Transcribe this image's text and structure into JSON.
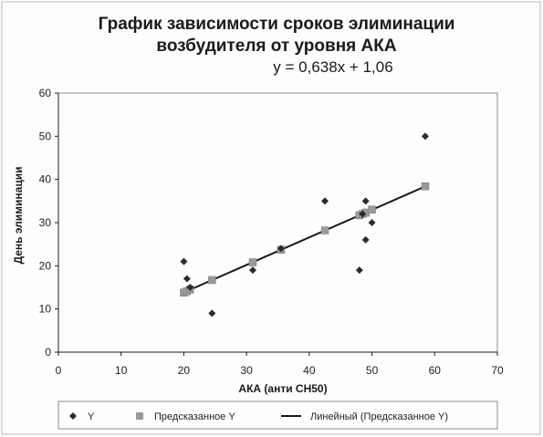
{
  "chart_data": {
    "type": "scatter",
    "title_lines": [
      "График зависимости сроков элиминации",
      "возбудителя от уровня АКА"
    ],
    "equation": "y = 0,638x + 1,06",
    "xlabel": "АКА (анти СН50)",
    "ylabel": "День элиминации",
    "xlim": [
      0,
      70
    ],
    "ylim": [
      0,
      60
    ],
    "x_ticks": [
      0,
      10,
      20,
      30,
      40,
      50,
      60,
      70
    ],
    "y_ticks": [
      0,
      10,
      20,
      30,
      40,
      50,
      60
    ],
    "grid": false,
    "legend_position": "bottom",
    "series": [
      {
        "name": "Y",
        "marker": "diamond",
        "color": "#2b2b2b",
        "points": [
          [
            20,
            21
          ],
          [
            20.5,
            17
          ],
          [
            21,
            15
          ],
          [
            24.5,
            9
          ],
          [
            31,
            19
          ],
          [
            35.5,
            24
          ],
          [
            42.5,
            35
          ],
          [
            48,
            19
          ],
          [
            48.5,
            32
          ],
          [
            49,
            26
          ],
          [
            49,
            35
          ],
          [
            50,
            30
          ],
          [
            58.5,
            50
          ]
        ]
      },
      {
        "name": "Предсказанное Y",
        "marker": "square",
        "color": "#9a9a9a",
        "points": [
          [
            20,
            13.8
          ],
          [
            20.5,
            14.1
          ],
          [
            21,
            14.5
          ],
          [
            24.5,
            16.7
          ],
          [
            31,
            20.8
          ],
          [
            35.5,
            23.7
          ],
          [
            42.5,
            28.2
          ],
          [
            48,
            31.7
          ],
          [
            48.5,
            32.0
          ],
          [
            49,
            32.3
          ],
          [
            49,
            32.3
          ],
          [
            50,
            33.0
          ],
          [
            58.5,
            38.4
          ]
        ]
      },
      {
        "name": "Линейный (Предсказанное Y)",
        "marker": "line",
        "color": "#1a1a1a",
        "slope": 0.638,
        "intercept": 1.06,
        "x_range": [
          20,
          58.5
        ]
      }
    ]
  }
}
